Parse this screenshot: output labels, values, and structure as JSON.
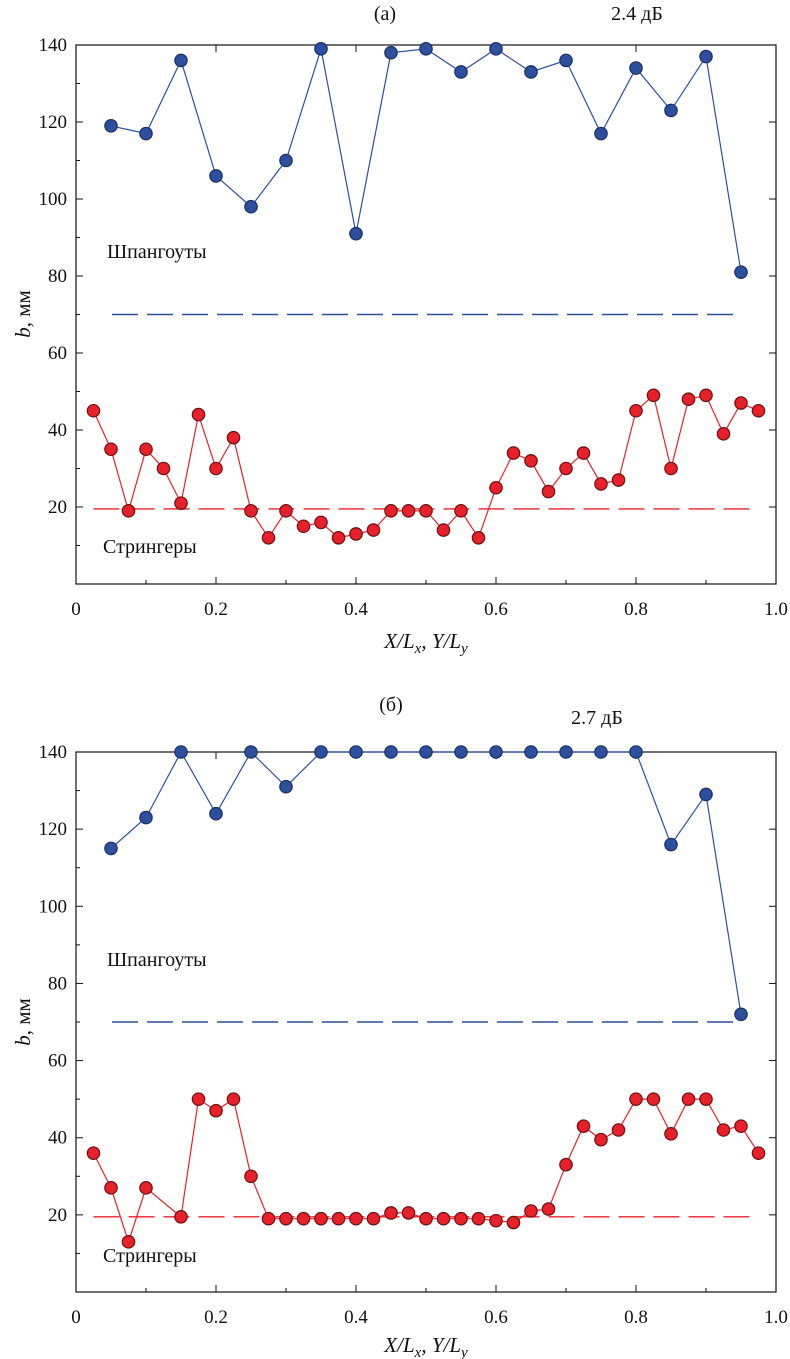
{
  "colors": {
    "frames": "#2c4f9e",
    "stringers": "#e8202a",
    "frames_dark": "#1a2f66",
    "stringers_dark": "#6a1010"
  },
  "chart_data": [
    {
      "type": "line",
      "title": "(а)",
      "annotation": "2.4 дБ",
      "xlabel": "X/Lx, Y/Ly",
      "xlabel_parts": [
        "X/L",
        "x",
        ", Y/L",
        "y"
      ],
      "ylabel_parts": [
        "b",
        ", мм"
      ],
      "xlim": [
        0,
        1.0
      ],
      "ylim": [
        0,
        140
      ],
      "xticks": [
        "0",
        "0.2",
        "0.4",
        "0.6",
        "0.8",
        "1.0"
      ],
      "yticks": [
        "20",
        "40",
        "60",
        "80",
        "100",
        "120",
        "140"
      ],
      "grid": false,
      "series": [
        {
          "name": "Шпангоуты",
          "x": [
            0.05,
            0.1,
            0.15,
            0.2,
            0.25,
            0.3,
            0.35,
            0.4,
            0.45,
            0.5,
            0.55,
            0.6,
            0.65,
            0.7,
            0.75,
            0.8,
            0.85,
            0.9,
            0.95
          ],
          "y": [
            119,
            117,
            136,
            106,
            98,
            110,
            139,
            91,
            138,
            139,
            133,
            139,
            133,
            136,
            117,
            134,
            123,
            137,
            81
          ]
        },
        {
          "name": "Стрингеры",
          "x": [
            0.025,
            0.05,
            0.075,
            0.1,
            0.125,
            0.15,
            0.175,
            0.2,
            0.225,
            0.25,
            0.275,
            0.3,
            0.325,
            0.35,
            0.375,
            0.4,
            0.425,
            0.45,
            0.475,
            0.5,
            0.525,
            0.55,
            0.575,
            0.6,
            0.625,
            0.65,
            0.675,
            0.7,
            0.725,
            0.75,
            0.775,
            0.8,
            0.825,
            0.85,
            0.875,
            0.9,
            0.925,
            0.95,
            0.975
          ],
          "y": [
            45,
            35,
            19,
            35,
            30,
            21,
            44,
            30,
            38,
            19,
            12,
            19,
            15,
            16,
            12,
            13,
            14,
            19,
            19,
            19,
            14,
            19,
            12,
            25,
            34,
            32,
            24,
            30,
            34,
            26,
            27,
            45,
            49,
            30,
            48,
            49,
            39,
            47,
            45
          ]
        }
      ],
      "reference_lines": [
        {
          "series": "Шпангоуты",
          "y": 70,
          "x": [
            0,
            0.95
          ]
        },
        {
          "series": "Стрингеры",
          "y": 19.5,
          "x": [
            0.025,
            0.975
          ]
        }
      ]
    },
    {
      "type": "line",
      "title": "(б)",
      "annotation": "2.7 дБ",
      "xlabel": "X/Lx, Y/Ly",
      "xlabel_parts": [
        "X/L",
        "x",
        ", Y/L",
        "y"
      ],
      "ylabel_parts": [
        "b",
        ", мм"
      ],
      "xlim": [
        0,
        1.0
      ],
      "ylim": [
        0,
        140
      ],
      "xticks": [
        "0",
        "0.2",
        "0.4",
        "0.6",
        "0.8",
        "1.0"
      ],
      "yticks": [
        "20",
        "40",
        "60",
        "80",
        "100",
        "120",
        "140"
      ],
      "grid": false,
      "series": [
        {
          "name": "Шпангоуты",
          "x": [
            0.05,
            0.1,
            0.15,
            0.2,
            0.25,
            0.3,
            0.35,
            0.4,
            0.45,
            0.5,
            0.55,
            0.6,
            0.65,
            0.7,
            0.75,
            0.8,
            0.85,
            0.9,
            0.95
          ],
          "y": [
            115,
            123,
            140,
            124,
            140,
            131,
            140,
            140,
            140,
            140,
            140,
            140,
            140,
            140,
            140,
            140,
            116,
            129,
            72
          ]
        },
        {
          "name": "Стрингеры",
          "x": [
            0.025,
            0.05,
            0.075,
            0.1,
            0.15,
            0.175,
            0.2,
            0.225,
            0.25,
            0.275,
            0.3,
            0.325,
            0.35,
            0.375,
            0.4,
            0.425,
            0.45,
            0.475,
            0.5,
            0.525,
            0.55,
            0.575,
            0.6,
            0.625,
            0.65,
            0.675,
            0.7,
            0.725,
            0.75,
            0.775,
            0.8,
            0.825,
            0.85,
            0.875,
            0.9,
            0.925,
            0.95,
            0.975
          ],
          "y": [
            36,
            27,
            13,
            27,
            19.5,
            50,
            47,
            50,
            30,
            19,
            19,
            19,
            19,
            19,
            19,
            19,
            20.5,
            20.5,
            19,
            19,
            19,
            19,
            18.5,
            18,
            21,
            21.5,
            33,
            43,
            39.5,
            42,
            50,
            50,
            41,
            50,
            50,
            42,
            43,
            36
          ]
        }
      ],
      "reference_lines": [
        {
          "series": "Шпангоуты",
          "y": 70,
          "x": [
            0,
            0.95
          ]
        },
        {
          "series": "Стрингеры",
          "y": 19.5,
          "x": [
            0.025,
            0.975
          ]
        }
      ]
    }
  ]
}
